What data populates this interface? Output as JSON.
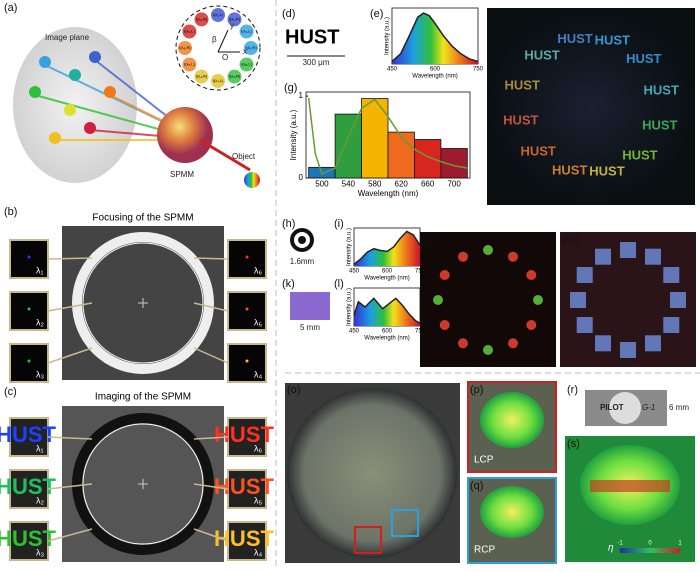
{
  "panels": [
    "(a)",
    "(b)",
    "(c)",
    "(d)",
    "(e)",
    "(f)",
    "(g)",
    "(h)",
    "(i)",
    "(j)",
    "(k)",
    "(l)",
    "(m)",
    "(o)",
    "(p)",
    "(q)",
    "(r)",
    "(s)"
  ],
  "texts": {
    "image_plane": "Image plane",
    "spmm": "SPMM",
    "object": "Object",
    "focusing_title": "Focusing of the SPMM",
    "imaging_title": "Imaging of the SPMM",
    "hust": "HUST",
    "scale_d": "300 μm",
    "scale_h": "1.6mm",
    "scale_k": "5 mm",
    "lcp": "LCP",
    "rcp": "RCP",
    "pilot": "PILOT",
    "pen": "G-1",
    "scale_r": "6 mm",
    "eta": "η"
  },
  "diagram": {
    "labels": [
      "I(λ₁,L)",
      "I(λ₁,R)",
      "I(λ₂,L)",
      "I(λ₂,R)",
      "I(λ₃,L)",
      "I(λ₃,R)",
      "I(λ₄,L)",
      "I(λ₄,R)",
      "I(λ₅,L)",
      "I(λ₅,R)",
      "I(λ₆,L)",
      "I(λ₆,R)"
    ],
    "beta": "β",
    "origin": "O",
    "x": "x",
    "y": "y"
  },
  "focusing_tiles": [
    "λ₁",
    "λ₂",
    "λ₃",
    "λ₆",
    "λ₅",
    "λ₄"
  ],
  "imaging_tiles": [
    "λ₁",
    "λ₂",
    "λ₃",
    "λ₆",
    "λ₅",
    "λ₄"
  ],
  "colorbar_ticks": [
    -1,
    0,
    1
  ],
  "chart_data": [
    {
      "type": "line",
      "xlabel": "Wavelength (nm)",
      "ylabel": "Intensity (a.u.)",
      "x": [
        450,
        480,
        510,
        540,
        560,
        580,
        600,
        630,
        660,
        690,
        720,
        750
      ],
      "series": [
        {
          "values": [
            0.05,
            0.2,
            0.55,
            0.92,
            1.0,
            0.95,
            0.8,
            0.55,
            0.35,
            0.2,
            0.1,
            0.05
          ]
        }
      ],
      "xlim": [
        450,
        750
      ],
      "xticks": [
        450,
        600,
        750
      ],
      "ylim": [
        0,
        1.1
      ]
    },
    {
      "type": "histogram",
      "xlabel": "Wavelength (nm)",
      "ylabel": "Intensity (a.u.)",
      "bins": [
        480,
        520,
        560,
        600,
        640,
        680,
        720
      ],
      "values": [
        0.13,
        0.78,
        0.97,
        0.56,
        0.47,
        0.36
      ],
      "colors": [
        "#1b75bb",
        "#2e9e3e",
        "#f5b400",
        "#ee6a1c",
        "#d8261f",
        "#9e1a2e"
      ],
      "curve": {
        "x": [
          480,
          490,
          500,
          520,
          540,
          560,
          580,
          600,
          620,
          640,
          660,
          680,
          700,
          720
        ],
        "values": [
          0.98,
          0.3,
          0.05,
          0.12,
          0.5,
          0.85,
          0.96,
          0.75,
          0.5,
          0.35,
          0.26,
          0.2,
          0.15,
          0.12
        ]
      },
      "xlim": [
        476,
        724
      ],
      "xticks": [
        500,
        540,
        580,
        620,
        660,
        700
      ],
      "ylim": [
        0,
        1.05
      ],
      "yticks": [
        0,
        1
      ]
    },
    {
      "type": "line",
      "xlabel": "Wavelength (nm)",
      "ylabel": "Intensity (a.u.)",
      "x": [
        450,
        480,
        510,
        540,
        570,
        600,
        630,
        660,
        690,
        720,
        750
      ],
      "series": [
        {
          "values": [
            0.05,
            0.2,
            0.4,
            0.5,
            0.45,
            0.42,
            0.55,
            0.8,
            1.0,
            0.9,
            0.6
          ]
        }
      ],
      "xlim": [
        450,
        750
      ],
      "xticks": [
        450,
        600,
        750
      ],
      "ylim": [
        0,
        1.1
      ]
    },
    {
      "type": "line",
      "xlabel": "Wavelength (nm)",
      "ylabel": "Intensity (a.u.)",
      "x": [
        450,
        470,
        500,
        540,
        580,
        610,
        640,
        670,
        700,
        730,
        750
      ],
      "series": [
        {
          "values": [
            0.3,
            0.7,
            0.55,
            0.8,
            0.5,
            0.65,
            0.8,
            0.6,
            0.35,
            0.15,
            0.08
          ]
        }
      ],
      "xlim": [
        450,
        750
      ],
      "xticks": [
        450,
        600,
        750
      ],
      "ylim": [
        0,
        1.1
      ]
    }
  ]
}
